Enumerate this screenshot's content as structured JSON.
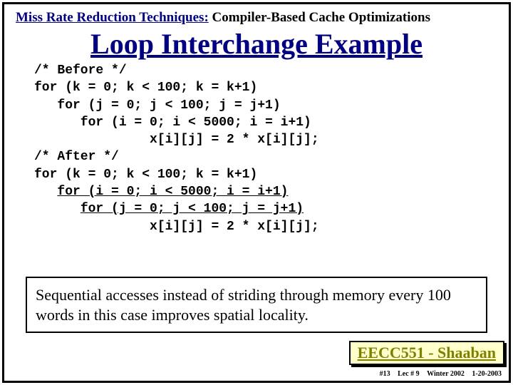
{
  "subtitle": {
    "part1": "Miss Rate Reduction Techniques:",
    "part2": "  Compiler-Based Cache Optimizations"
  },
  "title": "Loop Interchange Example",
  "code": {
    "l1": "/* Before */",
    "l2": "for (k = 0; k < 100; k = k+1)",
    "l3": "   for (j = 0; j < 100; j = j+1)",
    "l4": "      for (i = 0; i < 5000; i = i+1)",
    "l5": "               x[i][j] = 2 * x[i][j];",
    "l6": "/* After */",
    "l7": "for (k = 0; k < 100; k = k+1)",
    "l8a": "   ",
    "l8b": "for (i = 0; i < 5000; i = i+1)",
    "l9a": "      ",
    "l9b": "for (j = 0; j < 100; j = j+1)",
    "l10": "               x[i][j] = 2 * x[i][j];"
  },
  "explanation": "Sequential accesses instead of striding through memory every 100 words in this case improves spatial locality.",
  "footer": {
    "course": "EECC551 - Shaaban",
    "slide": "#13",
    "lecture": "Lec # 9",
    "term": "Winter 2002",
    "date": "1-20-2003"
  },
  "colors": {
    "title_color": "#000080",
    "footer_bg": "#ffffcc",
    "footer_text": "#808000",
    "border": "#000000",
    "background": "#ffffff"
  },
  "typography": {
    "title_fontsize": 40,
    "subtitle_fontsize": 19,
    "code_fontsize": 18,
    "explain_fontsize": 22,
    "footer_fontsize": 22,
    "meta_fontsize": 10
  }
}
